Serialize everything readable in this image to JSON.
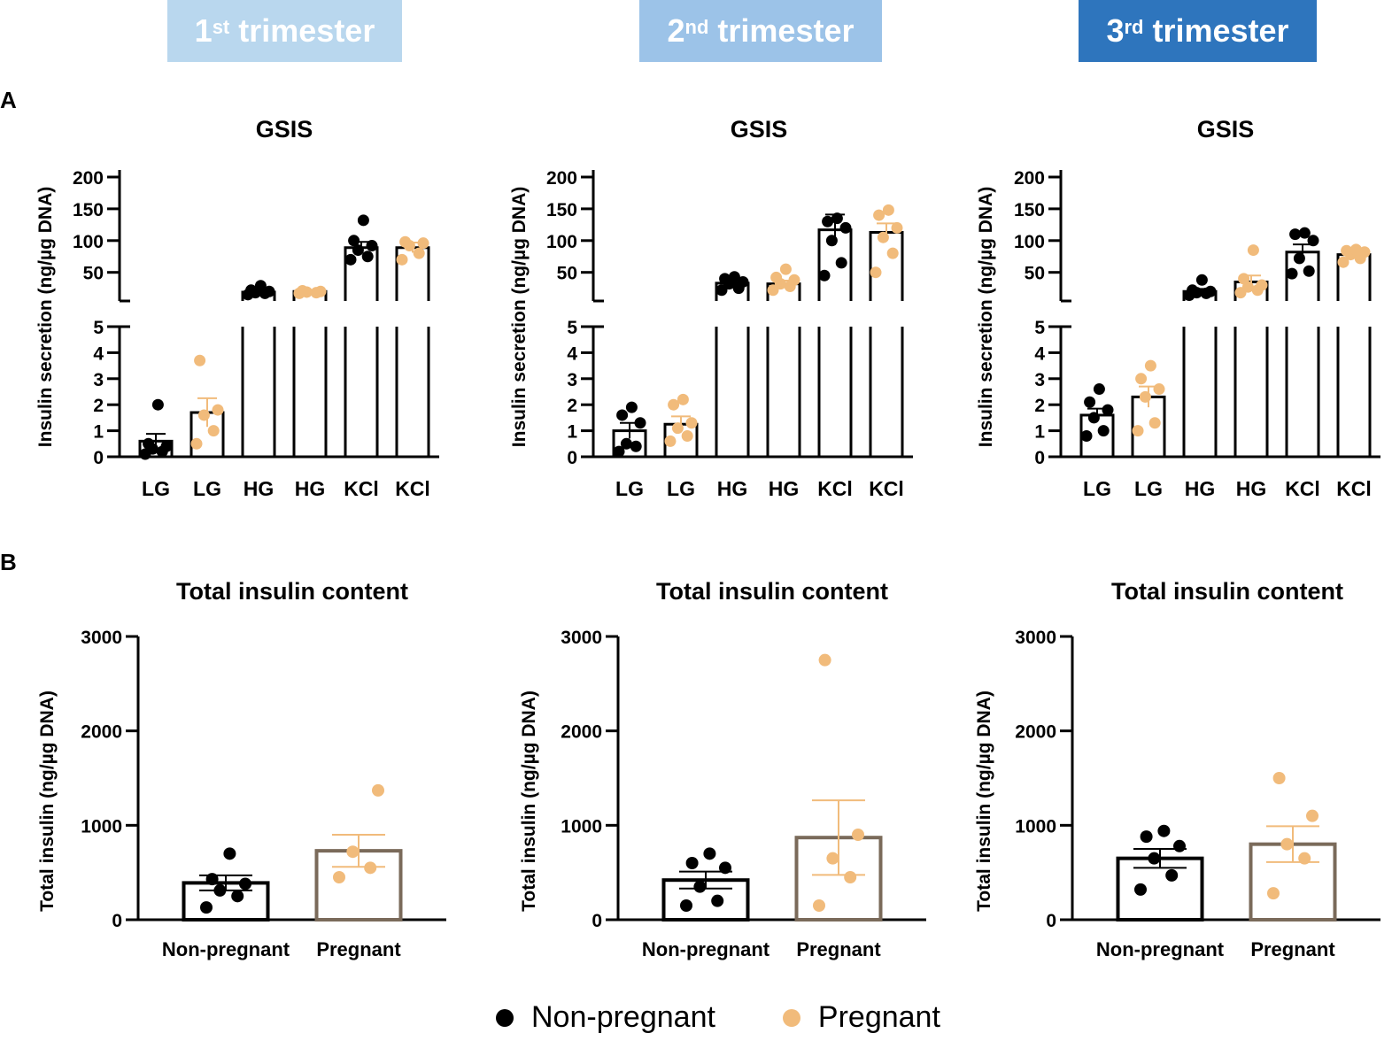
{
  "headers": [
    {
      "ord": "1",
      "sup": "st",
      "label": "trimester",
      "color": "#b9d7ee"
    },
    {
      "ord": "2",
      "sup": "nd",
      "label": "trimester",
      "color": "#9cc3e8"
    },
    {
      "ord": "3",
      "sup": "rd",
      "label": "trimester",
      "color": "#2e75bd"
    }
  ],
  "panel_labels": {
    "a": "A",
    "b": "B"
  },
  "colors": {
    "non_pregnant": "#000000",
    "pregnant": "#f1bb7b",
    "pregnant_bar": "#7a6a5a"
  },
  "legend": {
    "non_pregnant": "Non-pregnant",
    "pregnant": "Pregnant"
  },
  "chart_data": [
    {
      "type": "bar",
      "panel": "A",
      "trimester": "1st",
      "title": "GSIS",
      "ylabel": "Insulin secretion (ng/µg DNA)",
      "categories": [
        "LG",
        "LG",
        "HG",
        "HG",
        "KCl",
        "KCl"
      ],
      "groups": [
        "Non-pregnant",
        "Pregnant",
        "Non-pregnant",
        "Pregnant",
        "Non-pregnant",
        "Pregnant"
      ],
      "y_axis_broken": {
        "lower_range": [
          0,
          5
        ],
        "lower_ticks": [
          0,
          1,
          2,
          3,
          4,
          5
        ],
        "upper_range": [
          5,
          200
        ],
        "upper_ticks": [
          50,
          100,
          150,
          200
        ]
      },
      "means": [
        0.6,
        1.7,
        19,
        20,
        89,
        89
      ],
      "sem": [
        0.28,
        0.55,
        3,
        2,
        9,
        8
      ],
      "points": [
        [
          0.1,
          0.2,
          0.3,
          0.4,
          0.5,
          2.0
        ],
        [
          0.5,
          1.0,
          1.6,
          1.8,
          3.7
        ],
        [
          15,
          17,
          18,
          20,
          22,
          29
        ],
        [
          17,
          18,
          19,
          20,
          21
        ],
        [
          70,
          75,
          85,
          92,
          100,
          132
        ],
        [
          70,
          80,
          92,
          96,
          98
        ]
      ]
    },
    {
      "type": "bar",
      "panel": "A",
      "trimester": "2nd",
      "title": "GSIS",
      "ylabel": "Insulin secretion (ng/µg DNA)",
      "categories": [
        "LG",
        "LG",
        "HG",
        "HG",
        "KCl",
        "KCl"
      ],
      "groups": [
        "Non-pregnant",
        "Pregnant",
        "Non-pregnant",
        "Pregnant",
        "Non-pregnant",
        "Pregnant"
      ],
      "y_axis_broken": {
        "lower_range": [
          0,
          5
        ],
        "lower_ticks": [
          0,
          1,
          2,
          3,
          4,
          5
        ],
        "upper_range": [
          5,
          200
        ],
        "upper_ticks": [
          50,
          100,
          150,
          200
        ]
      },
      "means": [
        1.0,
        1.25,
        33,
        32,
        117,
        113
      ],
      "sem": [
        0.3,
        0.3,
        5,
        5,
        24,
        14
      ],
      "points": [
        [
          0.2,
          0.4,
          0.5,
          1.3,
          1.6,
          1.9
        ],
        [
          0.6,
          0.8,
          1.1,
          1.3,
          2.0,
          2.2
        ],
        [
          22,
          25,
          32,
          35,
          40,
          43
        ],
        [
          22,
          28,
          32,
          38,
          42,
          55
        ],
        [
          45,
          65,
          100,
          120,
          130,
          135
        ],
        [
          50,
          80,
          105,
          120,
          140,
          148
        ]
      ]
    },
    {
      "type": "bar",
      "panel": "A",
      "trimester": "3rd",
      "title": "GSIS",
      "ylabel": "Insulin secretion (ng/µg DNA)",
      "categories": [
        "LG",
        "LG",
        "HG",
        "HG",
        "KCl",
        "KCl"
      ],
      "groups": [
        "Non-pregnant",
        "Pregnant",
        "Non-pregnant",
        "Pregnant",
        "Non-pregnant",
        "Pregnant"
      ],
      "y_axis_broken": {
        "lower_range": [
          0,
          5
        ],
        "lower_ticks": [
          0,
          1,
          2,
          3,
          4,
          5
        ],
        "upper_range": [
          5,
          200
        ],
        "upper_ticks": [
          50,
          100,
          150,
          200
        ]
      },
      "means": [
        1.6,
        2.3,
        20,
        35,
        82,
        78
      ],
      "sem": [
        0.25,
        0.4,
        4,
        10,
        12,
        4
      ],
      "points": [
        [
          0.8,
          1.0,
          1.5,
          1.8,
          2.1,
          2.6
        ],
        [
          1.0,
          1.3,
          2.3,
          2.6,
          3.0,
          3.5
        ],
        [
          14,
          17,
          18,
          20,
          22,
          38
        ],
        [
          18,
          22,
          27,
          30,
          40,
          85
        ],
        [
          48,
          52,
          72,
          100,
          110,
          112
        ],
        [
          66,
          72,
          78,
          82,
          84,
          86
        ]
      ]
    },
    {
      "type": "bar",
      "panel": "B",
      "trimester": "1st",
      "title": "Total insulin content",
      "ylabel": "Total insulin (ng/µg DNA)",
      "categories": [
        "Non-pregnant",
        "Pregnant"
      ],
      "ylim": [
        0,
        3000
      ],
      "yticks": [
        0,
        1000,
        2000,
        3000
      ],
      "means": [
        390,
        730
      ],
      "sem": [
        80,
        170
      ],
      "points": [
        [
          130,
          250,
          310,
          380,
          430,
          700
        ],
        [
          450,
          550,
          720,
          1370
        ]
      ]
    },
    {
      "type": "bar",
      "panel": "B",
      "trimester": "2nd",
      "title": "Total insulin content",
      "ylabel": "Total insulin (ng/µg DNA)",
      "categories": [
        "Non-pregnant",
        "Pregnant"
      ],
      "ylim": [
        0,
        3000
      ],
      "yticks": [
        0,
        1000,
        2000,
        3000
      ],
      "means": [
        420,
        870
      ],
      "sem": [
        90,
        395
      ],
      "points": [
        [
          150,
          200,
          350,
          550,
          600,
          700
        ],
        [
          150,
          450,
          650,
          900,
          2750
        ]
      ]
    },
    {
      "type": "bar",
      "panel": "B",
      "trimester": "3rd",
      "title": "Total insulin content",
      "ylabel": "Total insulin (ng/µg DNA)",
      "categories": [
        "Non-pregnant",
        "Pregnant"
      ],
      "ylim": [
        0,
        3000
      ],
      "yticks": [
        0,
        1000,
        2000,
        3000
      ],
      "means": [
        650,
        800
      ],
      "sem": [
        100,
        190
      ],
      "points": [
        [
          320,
          470,
          650,
          780,
          880,
          940
        ],
        [
          280,
          650,
          800,
          1100,
          1500
        ]
      ]
    }
  ]
}
